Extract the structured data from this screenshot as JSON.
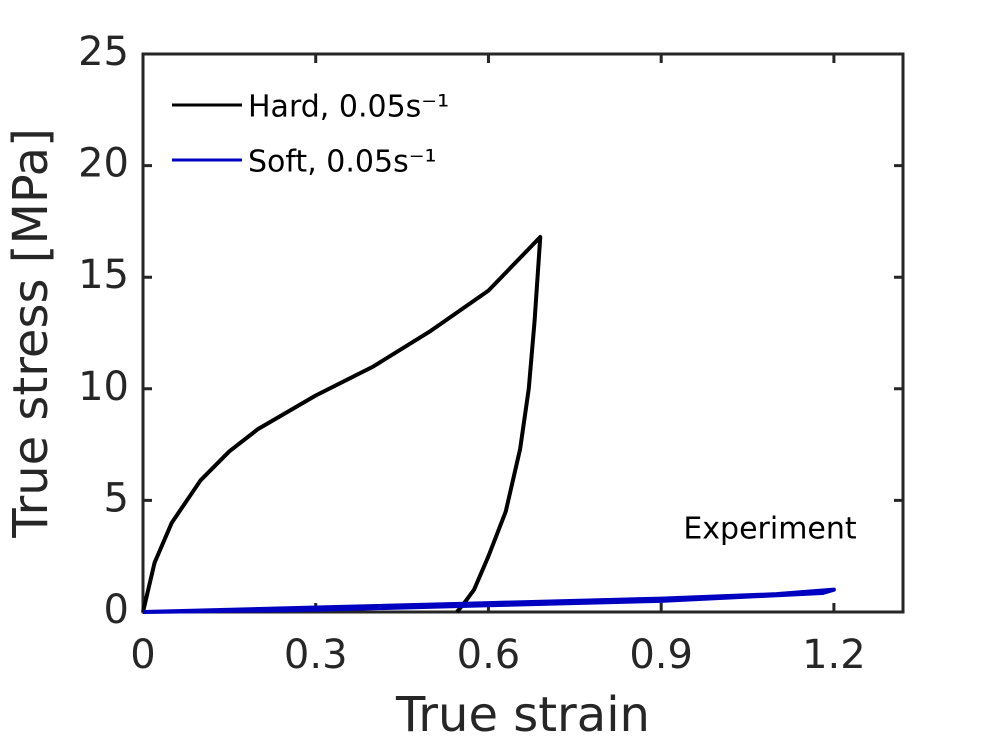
{
  "chart_data": {
    "type": "line",
    "xlabel": "True strain",
    "ylabel": "True stress [MPa]",
    "annotation": "Experiment",
    "xlim": [
      0,
      1.32
    ],
    "ylim": [
      0,
      25
    ],
    "xticks": [
      0,
      0.3,
      0.6,
      0.9,
      1.2
    ],
    "yticks": [
      0,
      5,
      10,
      15,
      20,
      25
    ],
    "legend": "upper left",
    "series": [
      {
        "name": "Hard, 0.05s⁻¹",
        "color": "#000000",
        "x": [
          0,
          0.02,
          0.05,
          0.1,
          0.15,
          0.2,
          0.3,
          0.4,
          0.5,
          0.6,
          0.69,
          0.68,
          0.67,
          0.655,
          0.63,
          0.6,
          0.575,
          0.555,
          0.545
        ],
        "values": [
          0,
          2.2,
          4,
          5.9,
          7.2,
          8.2,
          9.7,
          11,
          12.6,
          14.4,
          16.8,
          13,
          10,
          7.3,
          4.5,
          2.5,
          1,
          0.3,
          0
        ]
      },
      {
        "name": "Soft, 0.05s⁻¹",
        "color": "#0000c0",
        "x": [
          0,
          0.3,
          0.6,
          0.9,
          1.1,
          1.2,
          1.18,
          0.9,
          0.6,
          0.3,
          0
        ],
        "values": [
          0,
          0.2,
          0.4,
          0.6,
          0.8,
          1.0,
          0.85,
          0.5,
          0.3,
          0.1,
          0
        ]
      }
    ]
  }
}
